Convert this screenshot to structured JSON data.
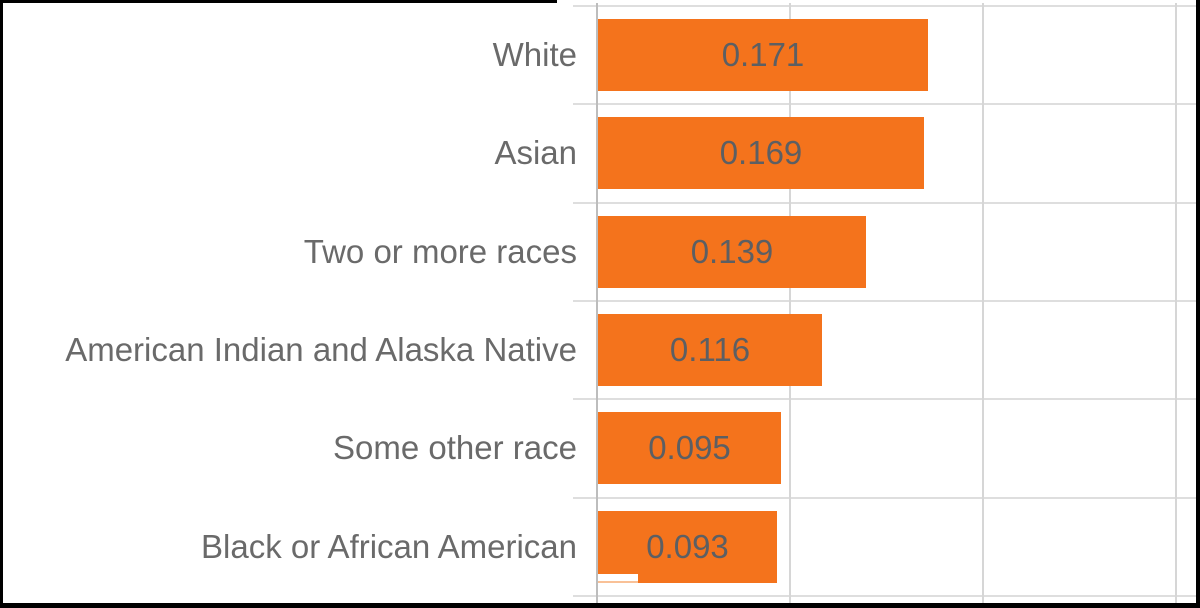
{
  "chart_data": {
    "type": "bar",
    "orientation": "horizontal",
    "categories": [
      "White",
      "Asian",
      "Two or more races",
      "American Indian and Alaska Native",
      "Some other race",
      "Black or African American"
    ],
    "values": [
      0.171,
      0.169,
      0.139,
      0.116,
      0.095,
      0.093
    ],
    "value_labels": [
      "0.171",
      "0.169",
      "0.139",
      "0.116",
      "0.095",
      "0.093"
    ],
    "title": "",
    "xlabel": "",
    "ylabel": "",
    "xlim": [
      0,
      0.31
    ],
    "gridline_interval": 0.1,
    "grid": "on",
    "legend": "none",
    "data_labels": "inside-center"
  },
  "colors": {
    "bar": "#f4731c",
    "value_text": "#5c5f63",
    "category_text": "#6a6a6a",
    "h_gridline": "#dedede",
    "v_gridline": "#d6d6d6",
    "axis_line": "#bdbdbd",
    "frame": "#000000",
    "background": "#ffffff"
  }
}
